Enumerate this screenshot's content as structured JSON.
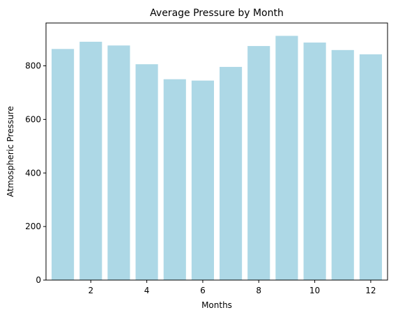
{
  "chart_data": {
    "type": "bar",
    "title": "Average Pressure by Month",
    "xlabel": "Months",
    "ylabel": "Atmospheric Pressure",
    "x": [
      1,
      2,
      3,
      4,
      5,
      6,
      7,
      8,
      9,
      10,
      11,
      12
    ],
    "values": [
      863,
      890,
      876,
      806,
      750,
      745,
      796,
      874,
      912,
      887,
      859,
      843
    ],
    "xlim": [
      0.4,
      12.6
    ],
    "ylim": [
      0,
      960
    ],
    "xticks": [
      2,
      4,
      6,
      8,
      10,
      12
    ],
    "yticks": [
      0,
      200,
      400,
      600,
      800
    ],
    "bar_width": 0.8,
    "bar_color": "#add8e6",
    "grid": false,
    "legend": false
  }
}
